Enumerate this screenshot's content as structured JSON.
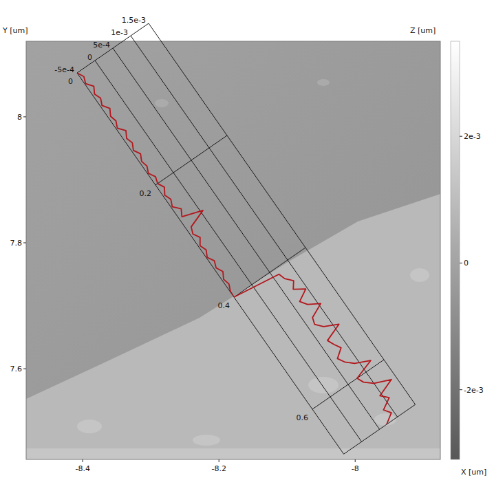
{
  "chart_data": [
    {
      "type": "image",
      "xlabel": "X [um]",
      "ylabel": "Y [um]",
      "xlim": [
        -8.483,
        -7.875
      ],
      "xticks": [
        -8.4,
        -8.2,
        -8
      ],
      "ylim": [
        7.456,
        8.12
      ],
      "yticks": [
        7.6,
        7.8,
        8
      ],
      "colorbar": {
        "label": "Z [um]",
        "range": [
          -0.0031,
          0.0035
        ],
        "ticks": [
          {
            "value": 0.002,
            "label": "2e-3"
          },
          {
            "value": 0,
            "label": "0"
          },
          {
            "value": -0.002,
            "label": "-2e-3"
          }
        ]
      }
    },
    {
      "type": "line",
      "color": "#b3161c",
      "x": [
        0,
        0.01,
        0.02,
        0.03,
        0.04,
        0.05,
        0.06,
        0.07,
        0.08,
        0.09,
        0.1,
        0.11,
        0.12,
        0.13,
        0.14,
        0.15,
        0.16,
        0.17,
        0.18,
        0.19,
        0.2,
        0.21,
        0.22,
        0.23,
        0.24,
        0.25,
        0.26,
        0.27,
        0.28,
        0.29,
        0.3,
        0.31,
        0.32,
        0.33,
        0.34,
        0.35,
        0.36,
        0.37,
        0.38,
        0.39,
        0.4,
        0.41,
        0.42,
        0.43,
        0.44,
        0.45,
        0.46,
        0.47,
        0.48,
        0.49,
        0.5,
        0.51,
        0.52,
        0.53,
        0.54,
        0.55,
        0.56,
        0.57,
        0.58,
        0.59,
        0.6,
        0.61,
        0.62,
        0.63,
        0.64,
        0.65,
        0.66,
        0.67,
        0.68
      ],
      "values": [
        -0.0005,
        -0.00042,
        -0.00048,
        -0.00036,
        -0.00045,
        -0.00039,
        -0.00046,
        -0.00035,
        -0.00044,
        -0.0004,
        -0.00047,
        -0.00034,
        -0.00043,
        -0.00038,
        -0.00046,
        -0.00037,
        -0.00045,
        -0.00041,
        -0.00048,
        -0.00039,
        -0.00044,
        -0.00036,
        -0.00046,
        -0.0004,
        -0.00047,
        -0.00033,
        -0.00042,
        6e-05,
        -0.00038,
        -0.00044,
        -0.00035,
        -0.00046,
        -0.0004,
        -0.00048,
        -0.00039,
        -0.00045,
        -0.00037,
        -0.00046,
        -0.00042,
        -0.00049,
        -0.0005,
        0.00065,
        0.0007,
        0.00084,
        0.00072,
        0.00096,
        0.00068,
        0.00079,
        0.00105,
        0.00071,
        0.00066,
        0.0008,
        0.00112,
        0.00069,
        0.00076,
        0.00085,
        0.00064,
        0.00073,
        0.0009,
        0.00124,
        0.00075,
        0.00082,
        0.001,
        0.00138,
        0.00095,
        0.0011,
        0.00083,
        0.00094,
        0.0007
      ],
      "xlim": [
        0,
        0.68
      ],
      "xticks": [
        0,
        0.2,
        0.4,
        0.6
      ],
      "ylim": [
        -0.0005,
        0.0015
      ],
      "yticks": [
        {
          "value": -0.0005,
          "label": "-5e-4"
        },
        {
          "value": 0,
          "label": "0"
        },
        {
          "value": 0.0005,
          "label": "5e-4"
        },
        {
          "value": 0.001,
          "label": "1e-3"
        },
        {
          "value": 0.0015,
          "label": "1.5e-3"
        }
      ]
    }
  ]
}
